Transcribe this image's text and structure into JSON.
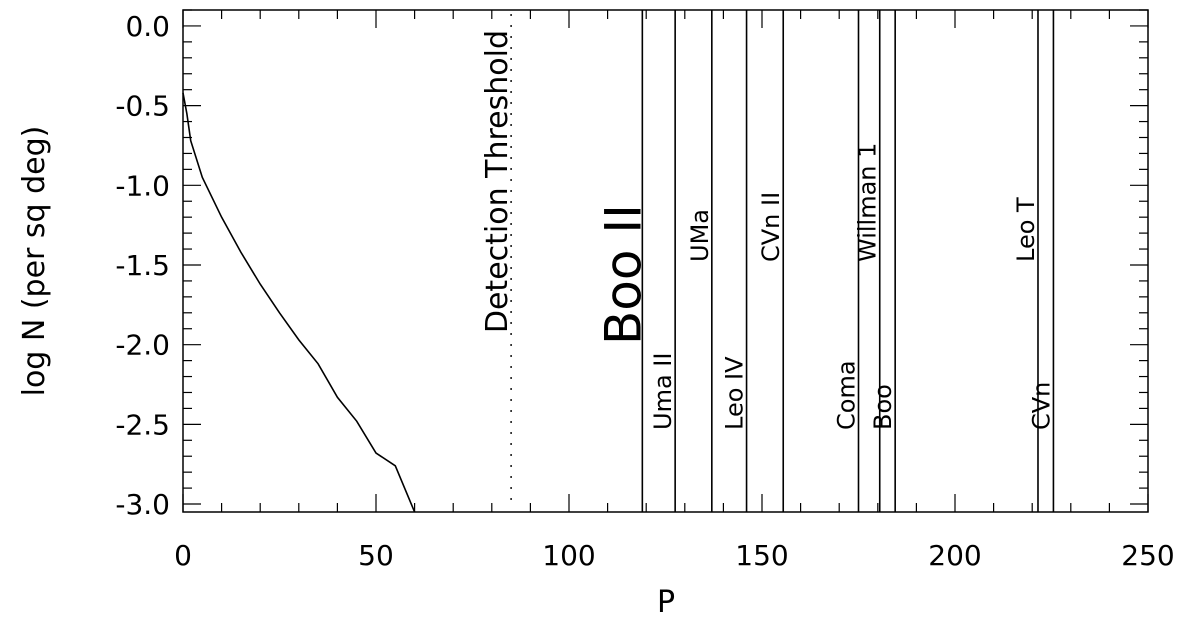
{
  "chart_data": {
    "type": "line",
    "title": "",
    "xlabel": "P",
    "ylabel": "log N (per sq deg)",
    "xlim": [
      0,
      250
    ],
    "ylim": [
      -3.05,
      0.1
    ],
    "x_ticks": [
      "0",
      "50",
      "100",
      "150",
      "200",
      "250"
    ],
    "y_ticks": [
      "0.0",
      "-0.5",
      "-1.0",
      "-1.5",
      "-2.0",
      "-2.5",
      "-3.0"
    ],
    "series": [
      {
        "x": [
          0,
          1,
          2,
          5,
          10,
          15,
          20,
          25,
          30,
          35,
          40,
          45,
          50,
          55,
          60
        ],
        "y": [
          -0.42,
          -0.55,
          -0.72,
          -0.95,
          -1.2,
          -1.42,
          -1.62,
          -1.8,
          -1.97,
          -2.12,
          -2.33,
          -2.48,
          -2.68,
          -2.76,
          -3.05
        ]
      }
    ],
    "threshold": {
      "label": "Detection Threshold",
      "x": 85,
      "style": "dotted"
    },
    "markers": [
      {
        "label": "Boo II",
        "x": 119,
        "size": "large"
      },
      {
        "label": "Uma II",
        "x": 127.5
      },
      {
        "label": "UMa",
        "x": 137
      },
      {
        "label": "Leo IV",
        "x": 146
      },
      {
        "label": "CVn II",
        "x": 155.5
      },
      {
        "label": "Coma",
        "x": 175
      },
      {
        "label": "Willman 1",
        "x": 180.5
      },
      {
        "label": "Boo",
        "x": 184.5
      },
      {
        "label": "Leo T",
        "x": 221.5
      },
      {
        "label": "CVn",
        "x": 225.5
      }
    ]
  }
}
